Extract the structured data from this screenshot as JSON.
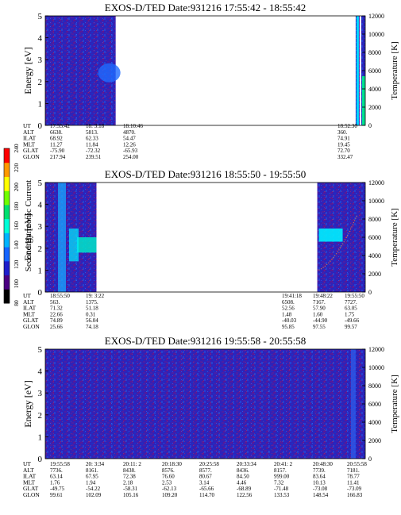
{
  "colorbar": {
    "label": "Second Harmonic Current",
    "ticks": [
      "80",
      "100",
      "120",
      "140",
      "160",
      "180",
      "200",
      "220",
      "240"
    ],
    "colors": [
      "#000000",
      "#4b0082",
      "#1e1ecc",
      "#1565ff",
      "#00b4ff",
      "#00ffd8",
      "#00e070",
      "#70ff00",
      "#ffff00",
      "#ff9900",
      "#ff0000"
    ]
  },
  "panels": [
    {
      "title": "EXOS-D/TED   Date:931216  17:55:42 - 18:55:42",
      "ylabel_left": "Energy [eV]",
      "ylabel_right": "Temperature [K]",
      "yticks_left": [
        "0",
        "1",
        "2",
        "3",
        "4",
        "5"
      ],
      "yticks_right": [
        "0",
        "2000",
        "4000",
        "6000",
        "8000",
        "10000",
        "12000"
      ],
      "data_blocks": [
        [
          0,
          0.22
        ],
        [
          0.97,
          1.0
        ]
      ],
      "orbit_labels": [
        "UT",
        "ALT",
        "ILAT",
        "MLT",
        "GLAT",
        "GLON"
      ],
      "orbit_columns": [
        {
          "values": [
            "17:55:42",
            "6638.",
            "68.92",
            "11.27",
            "-75.90",
            "217.94"
          ]
        },
        {
          "values": [
            "18: 3:18",
            "5813.",
            "62.33",
            "11.84",
            "-72.32",
            "239.51"
          ]
        },
        {
          "values": [
            "18:10:46",
            "4870.",
            "54.47",
            "12.26",
            "-65.93",
            "254.00"
          ]
        },
        {
          "values": [
            "18:52:30",
            "360.",
            "74.91",
            "19.45",
            "72.70",
            "332.47"
          ]
        }
      ]
    },
    {
      "title": "EXOS-D/TED   Date:931216  18:55:50 - 19:55:50",
      "ylabel_left": "Energy [eV]",
      "ylabel_right": "Temperature [K]",
      "yticks_left": [
        "0",
        "1",
        "2",
        "3",
        "4",
        "5"
      ],
      "yticks_right": [
        "0",
        "2000",
        "4000",
        "6000",
        "8000",
        "10000",
        "12000"
      ],
      "data_blocks": [
        [
          0,
          0.16
        ],
        [
          0.85,
          1.0
        ]
      ],
      "orbit_labels": [
        "UT",
        "ALT",
        "ILAT",
        "MLT",
        "GLAT",
        "GLON"
      ],
      "orbit_columns": [
        {
          "values": [
            "18:55:50",
            "563.",
            "71.32",
            "22.66",
            "74.89",
            "25.66"
          ]
        },
        {
          "values": [
            "19: 3:22",
            "1375.",
            "51.18",
            "0.31",
            "56.04",
            "74.18"
          ]
        },
        {
          "values": [
            "19:41:18",
            "6508.",
            "52.56",
            "1.48",
            "-40.03",
            "95.85"
          ]
        },
        {
          "values": [
            "19:48:22",
            "7167.",
            "57.90",
            "1.60",
            "-44.90",
            "97.55"
          ]
        },
        {
          "values": [
            "19:55:50",
            "7727.",
            "63.05",
            "1.75",
            "-49.66",
            "99.57"
          ]
        }
      ]
    },
    {
      "title": "EXOS-D/TED   Date:931216  19:55:58 - 20:55:58",
      "ylabel_left": "Energy [eV]",
      "ylabel_right": "Temperature [K]",
      "yticks_left": [
        "0",
        "1",
        "2",
        "3",
        "4",
        "5"
      ],
      "yticks_right": [
        "0",
        "2000",
        "4000",
        "6000",
        "8000",
        "10000",
        "12000"
      ],
      "data_blocks": [
        [
          0,
          1.0
        ]
      ],
      "orbit_labels": [
        "UT",
        "ALT",
        "ILAT",
        "MLT",
        "GLAT",
        "GLON"
      ],
      "orbit_columns": [
        {
          "values": [
            "19:55:58",
            "7736.",
            "63.14",
            "1.76",
            "-49.75",
            "99.61"
          ]
        },
        {
          "values": [
            "20: 3:34",
            "8161.",
            "67.95",
            "1.94",
            "-54.22",
            "102.09"
          ]
        },
        {
          "values": [
            "20:11: 2",
            "8438.",
            "72.38",
            "2.18",
            "-58.31",
            "105.16"
          ]
        },
        {
          "values": [
            "20:18:30",
            "8576.",
            "76.60",
            "2.53",
            "-62.13",
            "109.20"
          ]
        },
        {
          "values": [
            "20:25:58",
            "8577.",
            "80.67",
            "3.14",
            "-65.66",
            "114.70"
          ]
        },
        {
          "values": [
            "20:33:34",
            "8436.",
            "84.50",
            "4.46",
            "-68.89",
            "122.56"
          ]
        },
        {
          "values": [
            "20:41: 2",
            "8157.",
            "999.00",
            "7.32",
            "-71.48",
            "133.53"
          ]
        },
        {
          "values": [
            "20:48:30",
            "7739.",
            "83.64",
            "10.13",
            "-73.08",
            "148.54"
          ]
        },
        {
          "values": [
            "20:55:58",
            "7181.",
            "78.77",
            "11.41",
            "-73.09",
            "166.83"
          ]
        }
      ]
    }
  ],
  "chart_data": [
    {
      "type": "heatmap",
      "title": "EXOS-D/TED   Date:931216  17:55:42 - 18:55:42",
      "xlabel": "UT",
      "ylabel": "Energy [eV]",
      "y2label": "Temperature [K]",
      "ylim": [
        0,
        5
      ],
      "y2lim": [
        0,
        12000
      ],
      "x_ticks": [
        "17:55:42",
        "18: 3:18",
        "18:10:46",
        "18:52:30"
      ],
      "colorbar_label": "Second Harmonic Current",
      "colorbar_range": [
        80,
        240
      ]
    },
    {
      "type": "heatmap",
      "title": "EXOS-D/TED   Date:931216  18:55:50 - 19:55:50",
      "xlabel": "UT",
      "ylabel": "Energy [eV]",
      "y2label": "Temperature [K]",
      "ylim": [
        0,
        5
      ],
      "y2lim": [
        0,
        12000
      ],
      "x_ticks": [
        "18:55:50",
        "19: 3:22",
        "19:41:18",
        "19:48:22",
        "19:55:50"
      ],
      "colorbar_label": "Second Harmonic Current",
      "colorbar_range": [
        80,
        240
      ]
    },
    {
      "type": "heatmap",
      "title": "EXOS-D/TED   Date:931216  19:55:58 - 20:55:58",
      "xlabel": "UT",
      "ylabel": "Energy [eV]",
      "y2label": "Temperature [K]",
      "ylim": [
        0,
        5
      ],
      "y2lim": [
        0,
        12000
      ],
      "x_ticks": [
        "19:55:58",
        "20: 3:34",
        "20:11: 2",
        "20:18:30",
        "20:25:58",
        "20:33:34",
        "20:41: 2",
        "20:48:30",
        "20:55:58"
      ],
      "colorbar_label": "Second Harmonic Current",
      "colorbar_range": [
        80,
        240
      ]
    }
  ]
}
